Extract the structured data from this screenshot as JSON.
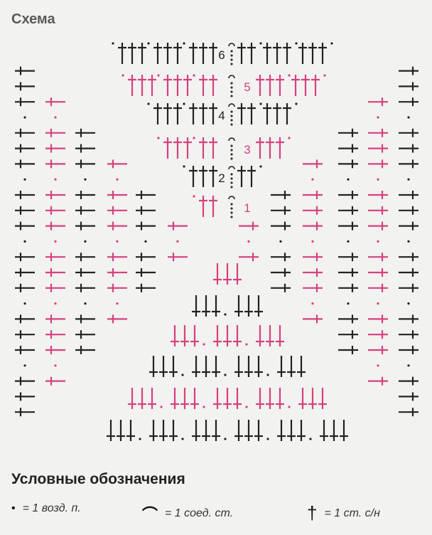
{
  "title": "Схема",
  "legend": {
    "title": "Условные обозначения",
    "items": [
      {
        "symbol": "•",
        "icon": "chain-dot-icon",
        "text": "= 1 возд. п."
      },
      {
        "symbol": "⌒",
        "icon": "slip-stitch-arc-icon",
        "text": "= 1 соед. ст."
      },
      {
        "symbol": "†",
        "icon": "double-crochet-icon",
        "text": "= 1 ст. с/н"
      }
    ]
  },
  "colors": {
    "odd_rounds": "#d6407f",
    "even_rounds": "#222222"
  },
  "chart": {
    "rounds": [
      {
        "label": "1",
        "top_left": [
          2
        ],
        "top_right": [],
        "bottom": [
          3
        ]
      },
      {
        "label": "2",
        "top_left": [
          3
        ],
        "top_right": [
          2
        ],
        "bottom": [
          3,
          3
        ]
      },
      {
        "label": "3",
        "top_left": [
          3,
          2
        ],
        "top_right": [
          3
        ],
        "bottom": [
          3,
          3,
          3
        ]
      },
      {
        "label": "4",
        "top_left": [
          3,
          3
        ],
        "top_right": [
          2,
          3
        ],
        "bottom": [
          3,
          3,
          3,
          3
        ]
      },
      {
        "label": "5",
        "top_left": [
          3,
          3,
          2
        ],
        "top_right": [
          3,
          3
        ],
        "bottom": [
          3,
          3,
          3,
          3,
          3
        ]
      },
      {
        "label": "6",
        "top_left": [
          3,
          3,
          3
        ],
        "top_right": [
          2,
          3,
          3
        ],
        "bottom": [
          3,
          3,
          3,
          3,
          3,
          3
        ]
      }
    ]
  }
}
